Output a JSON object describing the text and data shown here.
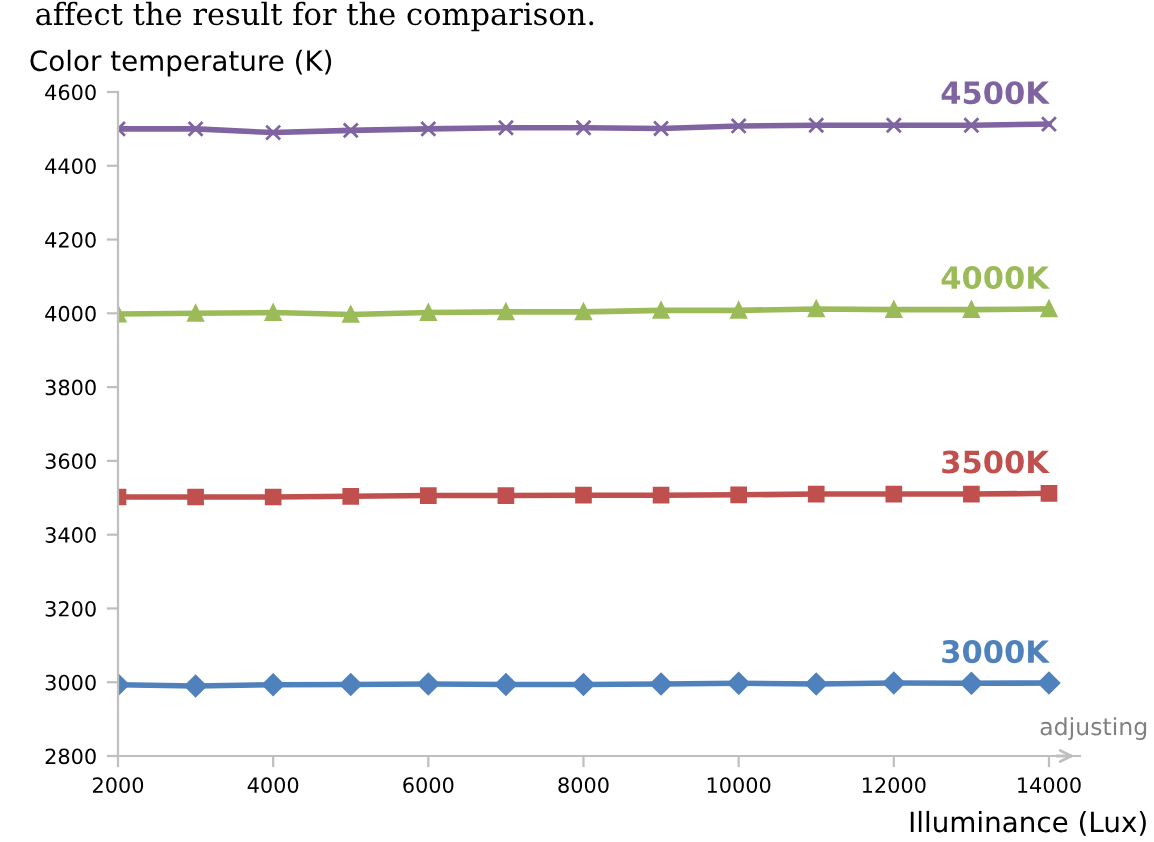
{
  "chart_data": {
    "type": "line",
    "ylabel": "Color temperature (K)",
    "xlabel": "Illuminance (Lux)",
    "x": [
      2000,
      3000,
      4000,
      5000,
      6000,
      7000,
      8000,
      9000,
      10000,
      11000,
      12000,
      13000,
      14000
    ],
    "series": [
      {
        "name": "4500K",
        "color": "#8064a2",
        "marker": "cross",
        "values": [
          4500,
          4500,
          4490,
          4496,
          4500,
          4503,
          4503,
          4501,
          4508,
          4510,
          4510,
          4510,
          4513
        ]
      },
      {
        "name": "4000K",
        "color": "#9bbb59",
        "marker": "triangle",
        "values": [
          3998,
          4000,
          4002,
          3997,
          4002,
          4004,
          4004,
          4008,
          4008,
          4012,
          4010,
          4010,
          4012
        ]
      },
      {
        "name": "3500K",
        "color": "#c0504d",
        "marker": "square",
        "values": [
          3502,
          3502,
          3502,
          3504,
          3506,
          3506,
          3507,
          3507,
          3508,
          3510,
          3510,
          3510,
          3512
        ]
      },
      {
        "name": "3000K",
        "color": "#4f81bd",
        "marker": "diamond",
        "values": [
          2993,
          2990,
          2993,
          2994,
          2995,
          2994,
          2994,
          2995,
          2997,
          2995,
          2998,
          2997,
          2998
        ]
      }
    ],
    "xlim": [
      2000,
      14400
    ],
    "xticks": [
      2000,
      4000,
      6000,
      8000,
      10000,
      12000,
      14000
    ],
    "ylim": [
      2800,
      4600
    ],
    "yticks": [
      2800,
      3000,
      3200,
      3400,
      3600,
      3800,
      4000,
      4200,
      4400,
      4600
    ],
    "grid": false,
    "legend": false,
    "line_style": "solid",
    "annotations": [
      "affect the result for the comparison.",
      "adjusting"
    ]
  }
}
